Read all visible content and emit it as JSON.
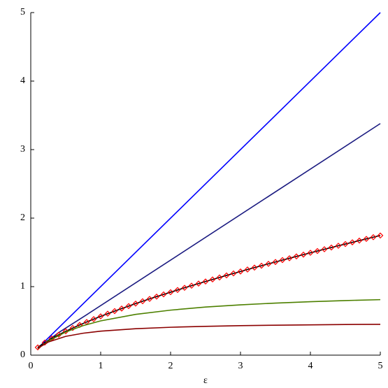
{
  "chart_data": {
    "type": "line",
    "x_label": "ε",
    "xlim": [
      0,
      5
    ],
    "ylim": [
      0,
      5
    ],
    "xticks": [
      0,
      1,
      2,
      3,
      4,
      5
    ],
    "yticks": [
      0,
      1,
      2,
      3,
      4,
      5
    ],
    "series": [
      {
        "color": "#0000ff",
        "x": [
          0.1,
          5
        ],
        "values": [
          0.1,
          5
        ]
      },
      {
        "color": "#1a1a80",
        "x": [
          0.1,
          0.4,
          0.8,
          5
        ],
        "values": [
          0.1,
          0.33,
          0.59,
          3.38
        ]
      },
      {
        "color": "#000000",
        "marker": "diamond",
        "marker_color": "#ff0000",
        "x": [
          0.1,
          0.2,
          0.3,
          0.4,
          0.5,
          0.6,
          0.7,
          0.8,
          0.9,
          1.0,
          1.1,
          1.2,
          1.3,
          1.4,
          1.5,
          1.6,
          1.7,
          1.8,
          1.9,
          2.0,
          2.1,
          2.2,
          2.3,
          2.4,
          2.5,
          2.6,
          2.7,
          2.8,
          2.9,
          3.0,
          3.1,
          3.2,
          3.3,
          3.4,
          3.5,
          3.6,
          3.7,
          3.8,
          3.9,
          4.0,
          4.1,
          4.2,
          4.3,
          4.4,
          4.5,
          4.6,
          4.7,
          4.8,
          4.9,
          5.0
        ],
        "values": [
          0.113,
          0.183,
          0.244,
          0.298,
          0.348,
          0.396,
          0.441,
          0.484,
          0.526,
          0.566,
          0.605,
          0.643,
          0.68,
          0.716,
          0.752,
          0.787,
          0.821,
          0.854,
          0.887,
          0.919,
          0.951,
          0.983,
          1.014,
          1.045,
          1.075,
          1.105,
          1.134,
          1.164,
          1.193,
          1.221,
          1.25,
          1.278,
          1.305,
          1.333,
          1.36,
          1.388,
          1.414,
          1.441,
          1.467,
          1.494,
          1.52,
          1.546,
          1.571,
          1.597,
          1.622,
          1.647,
          1.672,
          1.697,
          1.722,
          1.746
        ]
      },
      {
        "color": "#4d8000",
        "x": [
          0.1,
          0.25,
          0.5,
          0.75,
          1,
          1.5,
          2,
          2.5,
          3,
          3.5,
          4,
          4.5,
          5
        ],
        "values": [
          0.094,
          0.205,
          0.338,
          0.431,
          0.5,
          0.595,
          0.657,
          0.702,
          0.734,
          0.76,
          0.78,
          0.797,
          0.81
        ]
      },
      {
        "color": "#8b0000",
        "x": [
          0.1,
          0.25,
          0.5,
          0.75,
          1,
          1.5,
          2,
          2.5,
          3,
          3.5,
          4,
          4.5,
          5
        ],
        "values": [
          0.1,
          0.191,
          0.274,
          0.32,
          0.35,
          0.386,
          0.407,
          0.42,
          0.43,
          0.437,
          0.442,
          0.447,
          0.45
        ]
      }
    ]
  }
}
